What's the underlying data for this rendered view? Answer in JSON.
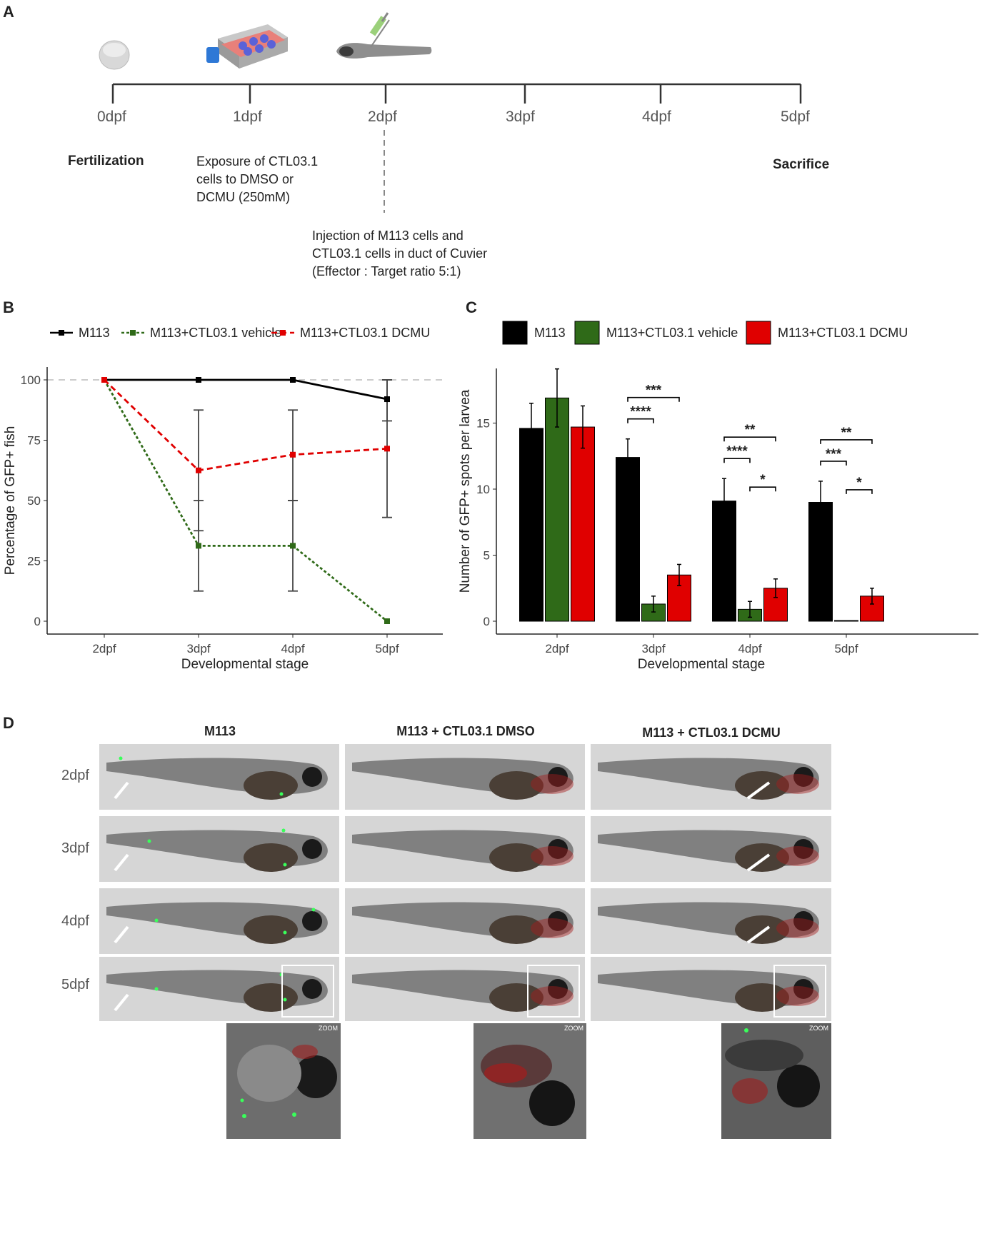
{
  "panel_letters": {
    "a": "A",
    "b": "B",
    "c": "C",
    "d": "D"
  },
  "timeline": {
    "stages": [
      "0dpf",
      "1dpf",
      "2dpf",
      "3dpf",
      "4dpf",
      "5dpf"
    ],
    "fertilization": "Fertilization",
    "exposure_lines": [
      "Exposure of CTL03.1",
      "cells to DMSO or",
      "DCMU (250mM)"
    ],
    "injection_lines": [
      "Injection of M113 cells and",
      "CTL03.1 cells in duct of Cuvier",
      "(Effector : Target ratio 5:1)"
    ],
    "sacrifice": "Sacrifice"
  },
  "colors": {
    "m113": "#000000",
    "vehicle": "#2f6a18",
    "dcmu": "#e00000"
  },
  "chart_data": [
    {
      "type": "line",
      "panel": "B",
      "title": "",
      "xlabel": "Developmental stage",
      "ylabel": "Percentage of GFP+ fish",
      "categories": [
        "2dpf",
        "3dpf",
        "4dpf",
        "5dpf"
      ],
      "ylim": [
        0,
        100
      ],
      "yticks": [
        "0",
        "25",
        "50",
        "75",
        "100"
      ],
      "reference_line": 100,
      "series": [
        {
          "name": "M113",
          "values": [
            100,
            100,
            100,
            92
          ],
          "err_low": [
            null,
            null,
            null,
            83
          ],
          "err_high": [
            null,
            null,
            null,
            100
          ]
        },
        {
          "name": "M113+CTL03.1 vehicle",
          "values": [
            100,
            31.25,
            31.25,
            0
          ],
          "err_low": [
            null,
            12.5,
            12.5,
            null
          ],
          "err_high": [
            null,
            50,
            50,
            null
          ]
        },
        {
          "name": "M113+CTL03.1 DCMU",
          "values": [
            100,
            62.5,
            69,
            71.5
          ],
          "err_low": [
            null,
            37.5,
            50,
            43
          ],
          "err_high": [
            null,
            87.5,
            87.5,
            100
          ]
        }
      ]
    },
    {
      "type": "bar",
      "panel": "C",
      "title": "",
      "xlabel": "Developmental stage",
      "ylabel": "Number of GFP+ spots per larvea",
      "categories": [
        "2dpf",
        "3dpf",
        "4dpf",
        "5dpf"
      ],
      "ylim": [
        0,
        20
      ],
      "yticks": [
        "0",
        "5",
        "10",
        "15"
      ],
      "series": [
        {
          "name": "M113",
          "values": [
            14.6,
            12.4,
            9.1,
            9.0
          ],
          "err": [
            1.9,
            1.4,
            1.7,
            1.6
          ]
        },
        {
          "name": "M113+CTL03.1 vehicle",
          "values": [
            16.9,
            1.3,
            0.9,
            0.0
          ],
          "err": [
            2.2,
            0.6,
            0.6,
            0.0
          ]
        },
        {
          "name": "M113+CTL03.1 DCMU",
          "values": [
            14.7,
            3.5,
            2.5,
            1.9
          ],
          "err": [
            1.6,
            0.8,
            0.7,
            0.6
          ]
        }
      ],
      "significance": [
        {
          "stage": "3dpf",
          "a": 0,
          "b": 1,
          "label": "****"
        },
        {
          "stage": "3dpf",
          "a": 0,
          "b": 2,
          "label": "***"
        },
        {
          "stage": "4dpf",
          "a": 0,
          "b": 1,
          "label": "****"
        },
        {
          "stage": "4dpf",
          "a": 1,
          "b": 2,
          "label": "*"
        },
        {
          "stage": "4dpf",
          "a": 0,
          "b": 2,
          "label": "**"
        },
        {
          "stage": "5dpf",
          "a": 0,
          "b": 1,
          "label": "***"
        },
        {
          "stage": "5dpf",
          "a": 1,
          "b": 2,
          "label": "*"
        },
        {
          "stage": "5dpf",
          "a": 0,
          "b": 2,
          "label": "**"
        }
      ]
    }
  ],
  "panel_d": {
    "columns": [
      "M113",
      "M113 + CTL03.1 DMSO",
      "M113 + CTL03.1 DCMU"
    ],
    "rows": [
      "2dpf",
      "3dpf",
      "4dpf",
      "5dpf"
    ],
    "zoom_label": "ZOOM"
  }
}
